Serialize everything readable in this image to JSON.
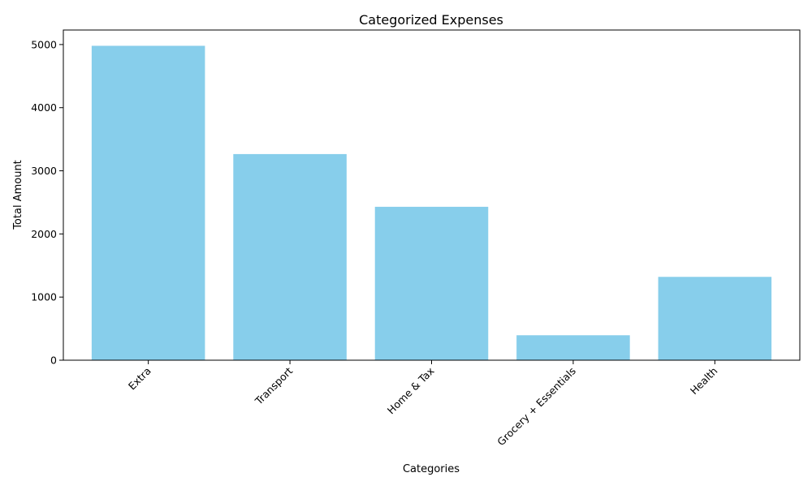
{
  "chart_data": {
    "type": "bar",
    "title": "Categorized Expenses",
    "xlabel": "Categories",
    "ylabel": "Total Amount",
    "categories": [
      "Extra",
      "Transport",
      "Home & Tax",
      "Grocery + Essentials",
      "Health"
    ],
    "values": [
      4980,
      3265,
      2430,
      395,
      1320
    ],
    "ylim": [
      0,
      5230
    ],
    "yticks": [
      0,
      1000,
      2000,
      3000,
      4000,
      5000
    ],
    "xtick_rotation_deg": 45,
    "grid": false,
    "legend": "none",
    "bar_color": "#87CEEB"
  }
}
